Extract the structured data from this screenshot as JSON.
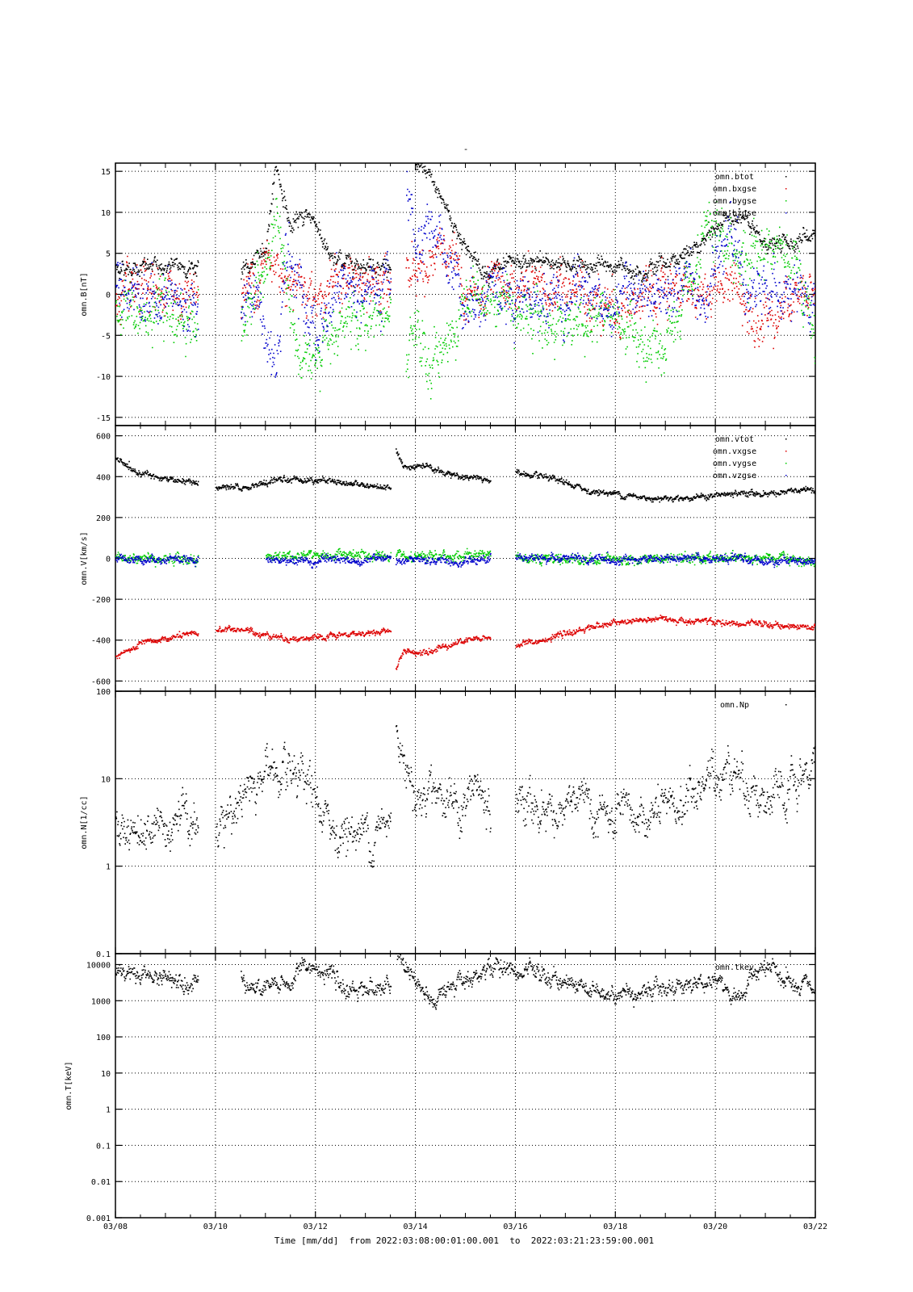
{
  "figure": {
    "title": "-",
    "xlabel": "Time [mm/dd]  from 2022:03:08:00:01:00.001  to  2022:03:21:23:59:00.001",
    "x_ticks": [
      "03/08",
      "03/10",
      "03/12",
      "03/14",
      "03/16",
      "03/18",
      "03/20",
      "03/22"
    ],
    "colors": {
      "black": "#000000",
      "red": "#dd0000",
      "green": "#00cc00",
      "blue": "#0000cc"
    }
  },
  "chart_data": [
    {
      "type": "scatter",
      "ylabel": "omn.B[nT]",
      "xlim": [
        0,
        14
      ],
      "ylim": [
        -16,
        16
      ],
      "yscale": "linear",
      "y_ticks": [
        "-15",
        "-10",
        "-5",
        "0",
        "5",
        "10",
        "15"
      ],
      "y_tick_values": [
        -15,
        -10,
        -5,
        0,
        5,
        10,
        15
      ],
      "grid": true,
      "legend_position": "top-right",
      "x_unit": "days since 03/08",
      "series": [
        {
          "name": "omn.btot",
          "color": "#000000",
          "noise": 0.4,
          "x": [
            0,
            1.65,
            1.7,
            2.5,
            2.7,
            2.8,
            2.9,
            3.0,
            3.2,
            3.5,
            3.8,
            4.0,
            4.3,
            4.5,
            4.8,
            5.0,
            5.5,
            5.6,
            5.8,
            6.0,
            6.3,
            6.5,
            6.8,
            7.0,
            7.3,
            7.5,
            7.7,
            8.0,
            8.5,
            9.0,
            9.5,
            10.0,
            10.5,
            11.0,
            11.5,
            12.0,
            12.3,
            12.6,
            12.9,
            13.2,
            13.5,
            14.0
          ],
          "y": [
            3.3,
            3.5,
            null,
            3.0,
            3.5,
            4.0,
            5.0,
            6.0,
            16.0,
            8.0,
            10.0,
            9.0,
            4.0,
            4.2,
            4.0,
            3.8,
            3.5,
            null,
            18.0,
            16.0,
            14.0,
            12.0,
            8.0,
            6.0,
            3.0,
            3.0,
            3.2,
            3.5,
            4.0,
            3.8,
            3.5,
            3.5,
            3.0,
            4.0,
            5.0,
            8.0,
            10.0,
            9.0,
            6.5,
            6.0,
            6.5,
            7.5
          ]
        },
        {
          "name": "omn.bxgse",
          "color": "#dd0000",
          "noise": 1.2,
          "x": [
            0,
            1.65,
            1.7,
            2.5,
            3.0,
            3.3,
            3.7,
            4.0,
            4.5,
            5.0,
            5.5,
            5.6,
            5.8,
            6.0,
            6.3,
            6.5,
            6.8,
            7.0,
            7.3,
            7.5,
            8.0,
            8.5,
            9.0,
            9.5,
            10.0,
            10.5,
            11.0,
            11.5,
            12.0,
            12.3,
            12.6,
            12.9,
            13.2,
            13.5,
            14.0
          ],
          "y": [
            -1.0,
            0.5,
            null,
            0.0,
            4.0,
            3.0,
            2.0,
            0.0,
            2.0,
            1.0,
            1.0,
            null,
            5.0,
            3.0,
            4.0,
            5.0,
            3.0,
            0.0,
            -1.0,
            0.0,
            1.0,
            0.0,
            1.0,
            0.0,
            -1.0,
            -1.0,
            0.0,
            1.0,
            0.0,
            2.0,
            -1.0,
            -2.0,
            -2.0,
            -1.0,
            0.0
          ]
        },
        {
          "name": "omn.bygse",
          "color": "#00cc00",
          "noise": 1.3,
          "x": [
            0,
            1.65,
            1.7,
            2.5,
            3.0,
            3.2,
            3.4,
            3.7,
            4.0,
            4.3,
            4.6,
            5.0,
            5.5,
            5.6,
            5.8,
            6.0,
            6.3,
            6.5,
            6.8,
            7.0,
            7.5,
            8.0,
            8.5,
            9.0,
            9.5,
            10.0,
            10.3,
            10.6,
            11.0,
            11.5,
            11.8,
            12.0,
            12.3,
            12.6,
            13.0,
            13.3,
            13.6,
            14.0
          ],
          "y": [
            -2.0,
            -3.0,
            null,
            -3.0,
            2.0,
            10.0,
            2.0,
            -10.0,
            -7.0,
            -3.0,
            -4.0,
            -3.0,
            -2.0,
            null,
            -10.0,
            -5.0,
            -9.0,
            -6.0,
            -5.0,
            0.0,
            0.0,
            -1.0,
            -3.0,
            -3.0,
            -3.0,
            -2.0,
            -5.0,
            -8.0,
            -6.0,
            0.0,
            7.0,
            7.0,
            5.0,
            5.0,
            6.0,
            6.0,
            5.0,
            -6.0
          ]
        },
        {
          "name": "omn.bzgse",
          "color": "#0000cc",
          "noise": 1.3,
          "x": [
            0,
            1.65,
            1.7,
            2.5,
            2.8,
            3.0,
            3.2,
            3.4,
            3.7,
            4.0,
            4.5,
            5.0,
            5.5,
            5.6,
            5.8,
            6.0,
            6.3,
            6.5,
            6.8,
            7.0,
            7.5,
            8.0,
            8.5,
            9.0,
            9.5,
            10.0,
            10.5,
            11.0,
            11.3,
            11.7,
            12.0,
            12.3,
            12.6,
            13.0,
            13.5,
            14.0
          ],
          "y": [
            1.0,
            -1.0,
            null,
            -1.0,
            0.0,
            -5.0,
            -10.0,
            5.0,
            0.0,
            -6.0,
            2.0,
            0.0,
            0.0,
            null,
            16.0,
            5.0,
            10.0,
            6.0,
            3.0,
            -1.0,
            1.0,
            0.0,
            -1.0,
            0.0,
            -1.0,
            0.0,
            -1.0,
            -2.0,
            2.0,
            1.0,
            4.0,
            8.0,
            0.0,
            1.0,
            -1.0,
            0.0
          ]
        }
      ]
    },
    {
      "type": "scatter",
      "ylabel": "omn.V[km/s]",
      "xlim": [
        0,
        14
      ],
      "ylim": [
        -650,
        650
      ],
      "yscale": "linear",
      "y_ticks": [
        "-600",
        "-400",
        "-200",
        "0",
        "200",
        "400",
        "600"
      ],
      "y_tick_values": [
        -600,
        -400,
        -200,
        0,
        200,
        400,
        600
      ],
      "grid": true,
      "legend_position": "top-right",
      "x_unit": "days since 03/08",
      "series": [
        {
          "name": "omn.vtot",
          "color": "#000000",
          "noise": 6,
          "x": [
            0,
            0.5,
            1.0,
            1.65,
            1.7,
            2.0,
            2.5,
            3.0,
            3.5,
            4.0,
            4.5,
            5.0,
            5.5,
            5.55,
            5.6,
            5.75,
            6.0,
            6.5,
            7.0,
            7.5,
            7.6,
            8.0,
            8.5,
            9.0,
            9.5,
            10.0,
            10.5,
            11.0,
            11.5,
            12.0,
            12.5,
            13.0,
            13.5,
            14.0
          ],
          "y": [
            480,
            420,
            390,
            370,
            null,
            350,
            345,
            370,
            390,
            390,
            375,
            360,
            355,
            null,
            540,
            450,
            460,
            430,
            400,
            385,
            null,
            420,
            400,
            370,
            330,
            320,
            300,
            300,
            300,
            310,
            320,
            320,
            330,
            335
          ]
        },
        {
          "name": "omn.vxgse",
          "color": "#dd0000",
          "noise": 6,
          "x": [
            0,
            0.5,
            1.0,
            1.65,
            1.7,
            2.0,
            2.5,
            3.0,
            3.5,
            4.0,
            4.5,
            5.0,
            5.5,
            5.55,
            5.6,
            5.75,
            6.0,
            6.5,
            7.0,
            7.5,
            7.6,
            8.0,
            8.5,
            9.0,
            9.5,
            10.0,
            10.5,
            11.0,
            11.5,
            12.0,
            12.5,
            13.0,
            13.5,
            14.0
          ],
          "y": [
            -480,
            -420,
            -390,
            -365,
            null,
            -345,
            -345,
            -370,
            -390,
            -390,
            -375,
            -360,
            -355,
            null,
            -540,
            -450,
            -460,
            -430,
            -400,
            -385,
            null,
            -420,
            -400,
            -370,
            -330,
            -315,
            -300,
            -295,
            -300,
            -310,
            -320,
            -320,
            -330,
            -335
          ]
        },
        {
          "name": "omn.vygse",
          "color": "#00cc00",
          "noise": 10,
          "x": [
            0,
            1.65,
            1.7,
            3.0,
            4.0,
            5.5,
            5.55,
            5.6,
            6.0,
            7.5,
            7.6,
            8.0,
            9.0,
            10.0,
            11.0,
            12.0,
            12.5,
            13.0,
            14.0
          ],
          "y": [
            10,
            0,
            null,
            15,
            20,
            10,
            null,
            10,
            0,
            30,
            null,
            10,
            0,
            0,
            0,
            0,
            10,
            0,
            -10
          ]
        },
        {
          "name": "omn.vzgse",
          "color": "#0000cc",
          "noise": 8,
          "x": [
            0,
            1.65,
            1.7,
            3.0,
            4.0,
            5.5,
            5.55,
            5.6,
            6.0,
            7.5,
            7.6,
            8.0,
            9.0,
            10.0,
            11.0,
            12.0,
            12.5,
            13.0,
            14.0
          ],
          "y": [
            0,
            0,
            null,
            -5,
            -10,
            0,
            null,
            -20,
            -10,
            -5,
            null,
            10,
            0,
            -5,
            0,
            0,
            -5,
            -5,
            -10
          ]
        }
      ]
    },
    {
      "type": "scatter",
      "ylabel": "omn.N[1/cc]",
      "xlim": [
        0,
        14
      ],
      "ylim": [
        0.1,
        100
      ],
      "yscale": "log",
      "y_ticks": [
        "0.1",
        "1",
        "10",
        "100"
      ],
      "y_tick_values": [
        0.1,
        1,
        10,
        100
      ],
      "grid": true,
      "legend_position": "top-right",
      "x_unit": "days since 03/08",
      "series": [
        {
          "name": "omn.Np",
          "color": "#000000",
          "noise": 0.12,
          "x": [
            0,
            0.5,
            1.0,
            1.65,
            1.7,
            2.0,
            2.5,
            2.8,
            3.0,
            3.3,
            3.6,
            3.9,
            4.2,
            4.5,
            4.7,
            5.0,
            5.3,
            5.5,
            5.55,
            5.6,
            5.8,
            6.0,
            6.3,
            6.6,
            6.9,
            7.2,
            7.5,
            7.6,
            8.0,
            8.5,
            9.0,
            9.2,
            9.5,
            10.0,
            10.5,
            11.0,
            11.3,
            11.6,
            11.8,
            12.0,
            12.3,
            12.6,
            13.0,
            13.4,
            13.7,
            14.0
          ],
          "y": [
            2.5,
            3.0,
            3.5,
            3.0,
            null,
            3.0,
            6.0,
            7.0,
            15.0,
            10.0,
            8.0,
            7.0,
            3.0,
            2.5,
            2.5,
            2.5,
            2.5,
            3.5,
            null,
            30.0,
            20.0,
            5.0,
            10.0,
            6.0,
            4.0,
            8.0,
            3.0,
            null,
            5.0,
            5.0,
            4.0,
            5.5,
            4.5,
            3.0,
            3.5,
            4.0,
            5.0,
            7.0,
            9.0,
            12.0,
            15.0,
            10.0,
            5.0,
            6.0,
            8.0,
            15.0
          ]
        }
      ]
    },
    {
      "type": "scatter",
      "ylabel": "omn.T[keV]",
      "xlim": [
        0,
        14
      ],
      "ylim": [
        0.001,
        20000
      ],
      "yscale": "log",
      "y_ticks": [
        "0.001",
        "0.01",
        "0.1",
        "1",
        "10",
        "100",
        "1000",
        "10000"
      ],
      "y_tick_values": [
        0.001,
        0.01,
        0.1,
        1,
        10,
        100,
        1000,
        10000
      ],
      "grid": true,
      "legend_position": "top-right",
      "x_unit": "days since 03/08",
      "series": [
        {
          "name": "omn.tkev",
          "color": "#000000",
          "noise": 0.12,
          "x": [
            0,
            0.5,
            1.0,
            1.65,
            1.7,
            2.5,
            2.8,
            3.1,
            3.5,
            3.8,
            4.0,
            4.5,
            5.0,
            5.5,
            5.55,
            5.6,
            5.8,
            6.0,
            6.2,
            6.4,
            6.6,
            7.0,
            7.3,
            7.6,
            8.0,
            8.5,
            9.0,
            9.5,
            10.0,
            10.5,
            11.0,
            11.5,
            12.0,
            12.3,
            12.6,
            13.0,
            13.5,
            14.0
          ],
          "y": [
            9000,
            5000,
            4500,
            4000,
            null,
            5000,
            2000,
            2500,
            3000,
            10000,
            8000,
            2000,
            2500,
            2000,
            null,
            20000,
            8000,
            3000,
            1500,
            600,
            2000,
            6000,
            4000,
            10000,
            6000,
            5000,
            3500,
            2000,
            1600,
            2000,
            2500,
            3000,
            4000,
            1200,
            2000,
            8000,
            2500,
            1800
          ]
        }
      ]
    }
  ]
}
